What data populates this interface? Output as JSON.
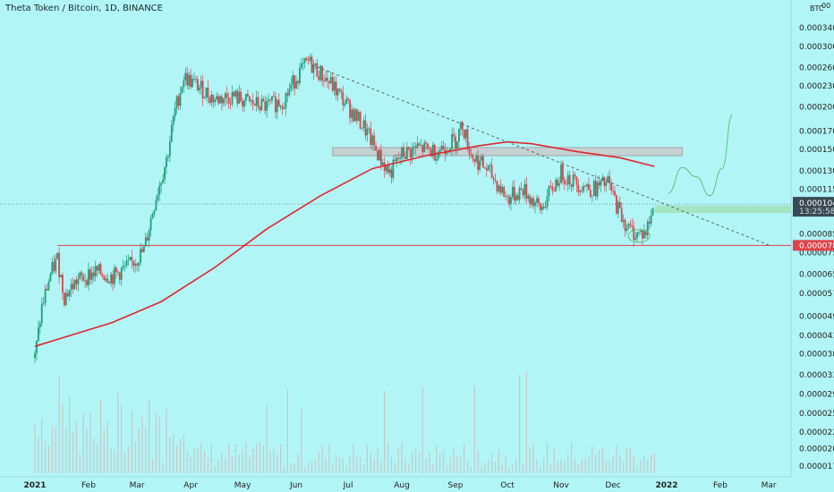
{
  "title": "Theta Token / Bitcoin, 1D, BINANCE",
  "currency_label": "BTC",
  "corner_label": "00",
  "colors": {
    "background": "#b2f5f7",
    "up": "#1f9d7a",
    "down": "#e0434a",
    "ma": "#e0262e",
    "trend": "#555555",
    "support": "#e0434a",
    "resist_zone": "#c9c9c9",
    "target_zone": "#9fe0b5",
    "projection": "#5fc17a",
    "current_tag": "#3a4a54",
    "support_tag": "#e0434a",
    "volume": "#c8c8c8"
  },
  "chart_data": {
    "type": "candlestick",
    "symbol": "THETA/BTC",
    "timeframe": "1D",
    "exchange": "BINANCE",
    "y_scale": "log",
    "ylim": [
      1.72e-05,
      4e-05
    ],
    "yticks": [
      "0.0003400",
      "0.0003000",
      "0.0002600",
      "0.0002300",
      "0.0002000",
      "0.0001700",
      "0.0001500",
      "0.0001300",
      "0.0001150",
      "0.0000850",
      "0.0000750",
      "0.0000650",
      "0.0000570",
      "0.0000490",
      "0.0000430",
      "0.0000380",
      "0.0000330",
      "0.0000290",
      "0.0000255",
      "0.0000225",
      "0.0000201",
      "0.0000179"
    ],
    "xticks": [
      {
        "label": "2021",
        "bold": true
      },
      {
        "label": "Feb"
      },
      {
        "label": "Mar"
      },
      {
        "label": "Apr"
      },
      {
        "label": "May"
      },
      {
        "label": "Jun"
      },
      {
        "label": "Jul"
      },
      {
        "label": "Aug"
      },
      {
        "label": "Sep"
      },
      {
        "label": "Oct"
      },
      {
        "label": "Nov"
      },
      {
        "label": "Dec"
      },
      {
        "label": "2022",
        "bold": true
      },
      {
        "label": "Feb"
      },
      {
        "label": "Mar"
      }
    ],
    "current_price": {
      "value": "0.0001040",
      "countdown": "13:25:58"
    },
    "support_level": {
      "value": "0.0000788"
    },
    "price_path": [
      [
        "2021-01-01",
        3.7e-05
      ],
      [
        "2021-01-05",
        5.2e-05
      ],
      [
        "2021-01-10",
        6.5e-05
      ],
      [
        "2021-01-14",
        7.2e-05
      ],
      [
        "2021-01-18",
        5.6e-05
      ],
      [
        "2021-01-25",
        6.2e-05
      ],
      [
        "2021-02-05",
        6.6e-05
      ],
      [
        "2021-02-15",
        6.4e-05
      ],
      [
        "2021-02-25",
        6.9e-05
      ],
      [
        "2021-03-05",
        7.6e-05
      ],
      [
        "2021-03-12",
        0.00011
      ],
      [
        "2021-03-18",
        0.00014
      ],
      [
        "2021-03-23",
        0.000195
      ],
      [
        "2021-03-28",
        0.000245
      ],
      [
        "2021-04-05",
        0.00023
      ],
      [
        "2021-04-15",
        0.00021
      ],
      [
        "2021-04-25",
        0.000215
      ],
      [
        "2021-05-05",
        0.000205
      ],
      [
        "2021-05-15",
        0.0002
      ],
      [
        "2021-05-25",
        0.00021
      ],
      [
        "2021-06-01",
        0.000245
      ],
      [
        "2021-06-08",
        0.00027
      ],
      [
        "2021-06-15",
        0.00025
      ],
      [
        "2021-06-22",
        0.00023
      ],
      [
        "2021-07-01",
        0.0002
      ],
      [
        "2021-07-10",
        0.000175
      ],
      [
        "2021-07-20",
        0.00014
      ],
      [
        "2021-07-25",
        0.000128
      ],
      [
        "2021-08-01",
        0.000145
      ],
      [
        "2021-08-10",
        0.000152
      ],
      [
        "2021-08-20",
        0.000148
      ],
      [
        "2021-09-01",
        0.00016
      ],
      [
        "2021-09-05",
        0.000178
      ],
      [
        "2021-09-10",
        0.000145
      ],
      [
        "2021-09-20",
        0.00013
      ],
      [
        "2021-10-01",
        0.000108
      ],
      [
        "2021-10-10",
        0.000115
      ],
      [
        "2021-10-20",
        0.0001
      ],
      [
        "2021-11-01",
        0.000128
      ],
      [
        "2021-11-10",
        0.00012
      ],
      [
        "2021-11-20",
        0.000115
      ],
      [
        "2021-11-28",
        0.00012
      ],
      [
        "2021-12-05",
        9.8e-05
      ],
      [
        "2021-12-10",
        8.8e-05
      ],
      [
        "2021-12-15",
        8.5e-05
      ],
      [
        "2021-12-20",
        8.6e-05
      ],
      [
        "2021-12-25",
        0.000104
      ]
    ],
    "moving_average": [
      [
        "2021-01-01",
        4e-05
      ],
      [
        "2021-02-15",
        4.7e-05
      ],
      [
        "2021-03-15",
        5.4e-05
      ],
      [
        "2021-04-15",
        6.8e-05
      ],
      [
        "2021-05-15",
        8.8e-05
      ],
      [
        "2021-06-15",
        0.00011
      ],
      [
        "2021-07-15",
        0.000132
      ],
      [
        "2021-08-15",
        0.000144
      ],
      [
        "2021-09-15",
        0.000154
      ],
      [
        "2021-10-01",
        0.000158
      ],
      [
        "2021-10-15",
        0.000156
      ],
      [
        "2021-11-10",
        0.000148
      ],
      [
        "2021-12-05",
        0.000142
      ],
      [
        "2021-12-25",
        0.000134
      ]
    ],
    "trendline": [
      [
        "2021-06-10",
        0.000265
      ],
      [
        "2022-03-01",
        7.9e-05
      ]
    ],
    "resistance_zone": {
      "from": "2021-06-22",
      "to": "2022-01-10",
      "low": 0.000144,
      "high": 0.000152
    },
    "target_zone": {
      "from": "2021-12-25",
      "to": "2022-03-31",
      "low": 9.8e-05,
      "high": 0.000103
    },
    "projection": [
      [
        "2022-01-02",
        0.000112
      ],
      [
        "2022-01-10",
        0.000133
      ],
      [
        "2022-01-18",
        0.000125
      ],
      [
        "2022-01-26",
        0.00011
      ],
      [
        "2022-02-02",
        0.000132
      ],
      [
        "2022-02-08",
        0.00019
      ]
    ]
  }
}
